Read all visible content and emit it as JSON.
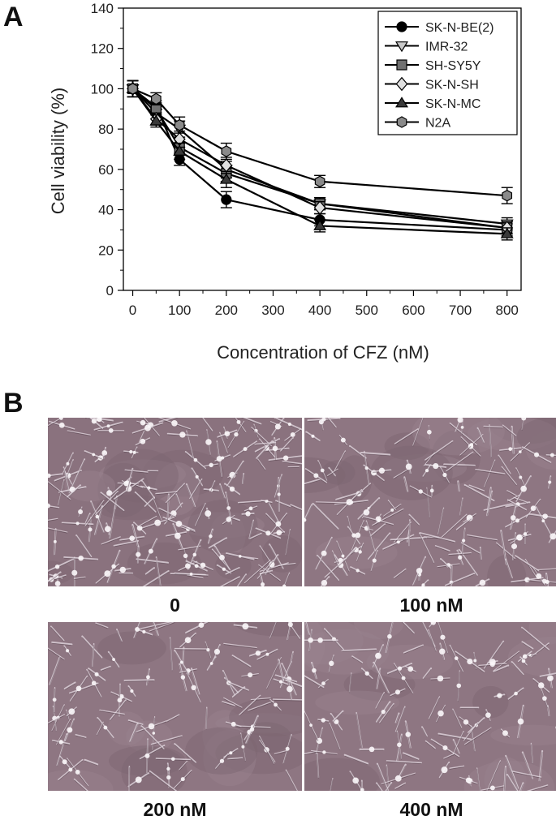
{
  "panels": {
    "a_letter": "A",
    "b_letter": "B"
  },
  "chart_data": {
    "type": "line",
    "xlabel": "Concentration of CFZ (nM)",
    "ylabel": "Cell viability (%)",
    "xlim": [
      -20,
      830
    ],
    "ylim": [
      0,
      140
    ],
    "xticks": [
      0,
      100,
      200,
      300,
      400,
      500,
      600,
      700,
      800
    ],
    "yticks": [
      0,
      20,
      40,
      60,
      80,
      100,
      120,
      140
    ],
    "grid": false,
    "legend_position": "top-right",
    "x": [
      0,
      50,
      100,
      200,
      400,
      800
    ],
    "series": [
      {
        "name": "SK-N-BE(2)",
        "marker": "circle",
        "fill": "#000000",
        "values": [
          100,
          91,
          65,
          45,
          35,
          30
        ],
        "errors": [
          4,
          3,
          3,
          4,
          3,
          3
        ]
      },
      {
        "name": "IMR-32",
        "marker": "triangle-down",
        "fill": "#c8c8c8",
        "values": [
          100,
          88,
          80,
          60,
          43,
          33
        ],
        "errors": [
          4,
          3,
          4,
          4,
          3,
          3
        ]
      },
      {
        "name": "SH-SY5Y",
        "marker": "square",
        "fill": "#707070",
        "values": [
          100,
          90,
          71,
          58,
          43,
          31
        ],
        "errors": [
          4,
          3,
          4,
          4,
          3,
          3
        ]
      },
      {
        "name": "SK-N-SH",
        "marker": "diamond",
        "fill": "#e0e0e0",
        "values": [
          100,
          85,
          75,
          62,
          41,
          31
        ],
        "errors": [
          4,
          3,
          4,
          4,
          3,
          3
        ]
      },
      {
        "name": "SK-N-MC",
        "marker": "triangle-up",
        "fill": "#3a3a3a",
        "values": [
          100,
          84,
          69,
          55,
          32,
          28
        ],
        "errors": [
          4,
          3,
          4,
          4,
          3,
          3
        ]
      },
      {
        "name": "N2A",
        "marker": "hexagon",
        "fill": "#8a8a8a",
        "values": [
          100,
          95,
          82,
          69,
          54,
          47
        ],
        "errors": [
          4,
          3,
          4,
          4,
          3,
          4
        ]
      }
    ]
  },
  "micrographs": [
    {
      "label": "0"
    },
    {
      "label": "100 nM"
    },
    {
      "label": "200 nM"
    },
    {
      "label": "400 nM"
    }
  ]
}
